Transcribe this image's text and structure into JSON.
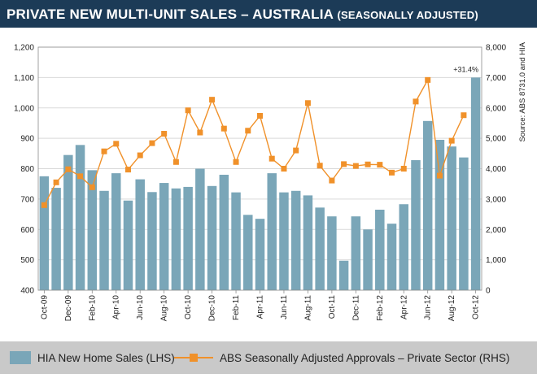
{
  "title": {
    "main": "PRIVATE NEW MULTI-UNIT SALES – AUSTRALIA",
    "sub": "(SEASONALLY ADJUSTED)"
  },
  "colors": {
    "title_bg": "#1c3b57",
    "bar": "#7aa6b8",
    "line": "#f0912a",
    "legend_bg": "#c9c9c9"
  },
  "chart_data": {
    "type": "bar",
    "categories": [
      "Oct-09",
      "Nov-09",
      "Dec-09",
      "Jan-10",
      "Feb-10",
      "Mar-10",
      "Apr-10",
      "May-10",
      "Jun-10",
      "Jul-10",
      "Aug-10",
      "Sep-10",
      "Oct-10",
      "Nov-10",
      "Dec-10",
      "Jan-11",
      "Feb-11",
      "Mar-11",
      "Apr-11",
      "May-11",
      "Jun-11",
      "Jul-11",
      "Aug-11",
      "Sep-11",
      "Oct-11",
      "Nov-11",
      "Dec-11",
      "Jan-12",
      "Feb-12",
      "Mar-12",
      "Apr-12",
      "May-12",
      "Jun-12",
      "Jul-12",
      "Aug-12",
      "Sep-12",
      "Oct-12"
    ],
    "x_tick_labels": [
      "Oct-09",
      "Dec-09",
      "Feb-10",
      "Apr-10",
      "Jun-10",
      "Aug-10",
      "Oct-10",
      "Dec-10",
      "Feb-11",
      "Apr-11",
      "Jun-11",
      "Aug-11",
      "Oct-11",
      "Dec-11",
      "Feb-12",
      "Apr-12",
      "Jun-12",
      "Aug-12",
      "Oct-12"
    ],
    "series": [
      {
        "name": "HIA New Home Sales (LHS)",
        "type": "bar",
        "axis": "left",
        "values": [
          775,
          737,
          845,
          878,
          795,
          727,
          785,
          695,
          765,
          723,
          753,
          735,
          740,
          800,
          743,
          780,
          722,
          648,
          635,
          785,
          722,
          727,
          712,
          672,
          643,
          497,
          643,
          600,
          665,
          619,
          683,
          828,
          957,
          895,
          873,
          837,
          1100
        ]
      },
      {
        "name": "ABS Seasonally Adjusted Approvals – Private Sector (RHS)",
        "type": "line",
        "axis": "right",
        "values": [
          2800,
          3550,
          3980,
          3750,
          3390,
          4570,
          4820,
          3970,
          4440,
          4840,
          5150,
          4220,
          5920,
          5190,
          6270,
          5320,
          4220,
          5250,
          5740,
          4330,
          4000,
          4600,
          6160,
          4100,
          3610,
          4150,
          4090,
          4140,
          4130,
          3870,
          4000,
          6210,
          6920,
          3770,
          4920,
          5760,
          null
        ]
      }
    ],
    "left_axis": {
      "ylim": [
        400,
        1200
      ],
      "ticks": [
        "400",
        "500",
        "600",
        "700",
        "800",
        "900",
        "1,000",
        "1,100",
        "1,200"
      ]
    },
    "right_axis": {
      "ylim": [
        0,
        8000
      ],
      "ticks": [
        "0",
        "1,000",
        "2,000",
        "3,000",
        "4,000",
        "5,000",
        "6,000",
        "7,000",
        "8,000"
      ]
    },
    "annotation": "+31.4%",
    "source_note": "Source: ABS 8731.0 and HIA",
    "legend": {
      "bar_label": "HIA New Home Sales (LHS)",
      "line_label": "ABS Seasonally Adjusted Approvals – Private Sector (RHS)"
    }
  }
}
